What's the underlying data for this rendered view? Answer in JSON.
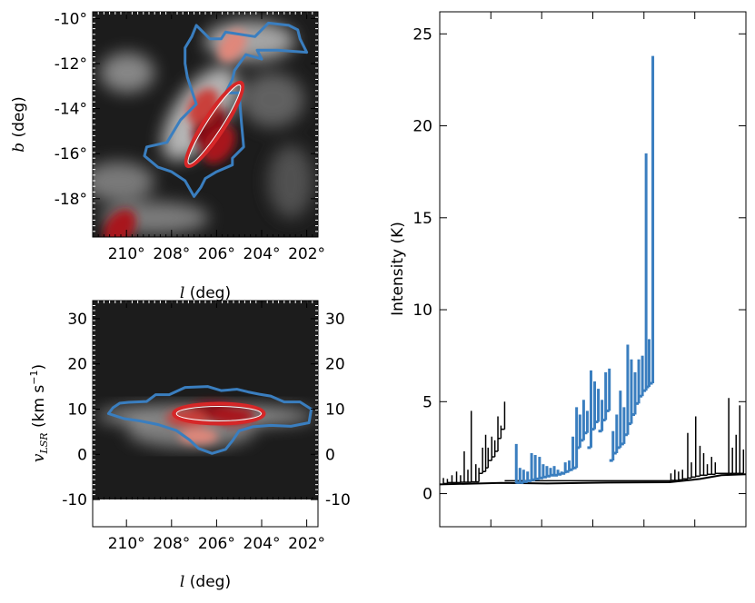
{
  "chart_data": [
    {
      "type": "heatmap",
      "name": "sky-map",
      "xlabel_var": "l",
      "xlabel_unit": "(deg)",
      "ylabel_var": "b",
      "ylabel_unit": "(deg)",
      "xlim": [
        211.5,
        201.5
      ],
      "ylim": [
        -19.7,
        -9.7
      ],
      "x_ticks": [
        210,
        208,
        206,
        204,
        202
      ],
      "x_tick_labels": [
        "210°",
        "208°",
        "206°",
        "204°",
        "202°"
      ],
      "y_ticks": [
        -10,
        -12,
        -14,
        -16,
        -18
      ],
      "y_tick_labels": [
        "-10°",
        "-12°",
        "-14°",
        "-16°",
        "-18°"
      ],
      "contour_color": "#3a7ebf",
      "ellipse_color": "#d62728",
      "ellipse": {
        "center_l": 206.1,
        "center_b": -14.7,
        "semi_major_deg": 2.2,
        "semi_minor_deg": 0.45,
        "angle_deg": 57
      },
      "contour_outline": [
        [
          206.9,
          -10.3
        ],
        [
          206.3,
          -10.9
        ],
        [
          205.8,
          -10.9
        ],
        [
          205.6,
          -10.6
        ],
        [
          204.3,
          -10.8
        ],
        [
          203.7,
          -10.2
        ],
        [
          202.8,
          -10.3
        ],
        [
          202.4,
          -10.5
        ],
        [
          202.3,
          -10.9
        ],
        [
          202.0,
          -11.5
        ],
        [
          203.3,
          -11.4
        ],
        [
          204.2,
          -11.4
        ],
        [
          204.0,
          -11.8
        ],
        [
          204.7,
          -11.6
        ],
        [
          205.2,
          -12.3
        ],
        [
          205.3,
          -12.7
        ],
        [
          205.6,
          -13.3
        ],
        [
          205.0,
          -13.3
        ],
        [
          204.9,
          -14.6
        ],
        [
          204.8,
          -15.7
        ],
        [
          205.3,
          -16.2
        ],
        [
          205.3,
          -16.5
        ],
        [
          206.0,
          -16.8
        ],
        [
          206.5,
          -17.1
        ],
        [
          206.7,
          -17.5
        ],
        [
          207.0,
          -17.9
        ],
        [
          207.4,
          -17.2
        ],
        [
          208.0,
          -16.8
        ],
        [
          208.6,
          -16.6
        ],
        [
          209.2,
          -16.1
        ],
        [
          209.1,
          -15.7
        ],
        [
          208.2,
          -15.5
        ],
        [
          207.6,
          -14.5
        ],
        [
          206.9,
          -13.8
        ],
        [
          207.1,
          -13.2
        ],
        [
          207.3,
          -12.6
        ],
        [
          207.4,
          -12.0
        ],
        [
          207.4,
          -11.3
        ],
        [
          207.1,
          -10.8
        ]
      ],
      "hot_spots": [
        {
          "l": 206.3,
          "b": -14.8,
          "intensity": 1.0
        },
        {
          "l": 205.9,
          "b": -15.6,
          "intensity": 0.9
        },
        {
          "l": 206.6,
          "b": -13.9,
          "intensity": 0.75
        },
        {
          "l": 210.3,
          "b": -19.3,
          "intensity": 0.85
        },
        {
          "l": 205.3,
          "b": -11.2,
          "intensity": 0.5
        }
      ]
    },
    {
      "type": "heatmap",
      "name": "position-velocity-map",
      "xlabel_var": "l",
      "xlabel_unit": "(deg)",
      "ylabel_var": "v",
      "ylabel_subscript": "LSR",
      "ylabel_unit_pre": "(km s",
      "ylabel_unit_exp": "−1",
      "ylabel_unit_post": ")",
      "xlim": [
        211.5,
        201.5
      ],
      "ylim": [
        -16,
        34
      ],
      "data_floor": -10,
      "x_ticks": [
        210,
        208,
        206,
        204,
        202
      ],
      "x_tick_labels": [
        "210°",
        "208°",
        "206°",
        "204°",
        "202°"
      ],
      "y_ticks": [
        30,
        20,
        10,
        0,
        -10
      ],
      "y_tick_labels": [
        "30",
        "20",
        "10",
        "0",
        "-10"
      ],
      "contour_color": "#3a7ebf",
      "ellipse_color": "#d62728",
      "ellipse": {
        "center_l": 205.9,
        "center_v": 9.0,
        "semi_major_deg": 2.0,
        "semi_minor_kms": 2.2
      },
      "contour_outline": [
        [
          209.9,
          11.5
        ],
        [
          209.1,
          11.7
        ],
        [
          208.7,
          13.2
        ],
        [
          208.1,
          13.2
        ],
        [
          207.4,
          14.8
        ],
        [
          206.4,
          15.0
        ],
        [
          205.8,
          14.1
        ],
        [
          205.1,
          14.4
        ],
        [
          204.6,
          13.8
        ],
        [
          204.1,
          13.3
        ],
        [
          203.6,
          12.9
        ],
        [
          203.0,
          11.6
        ],
        [
          202.3,
          11.6
        ],
        [
          201.8,
          10.0
        ],
        [
          201.9,
          7.0
        ],
        [
          202.7,
          6.2
        ],
        [
          203.6,
          6.4
        ],
        [
          204.4,
          6.1
        ],
        [
          205.0,
          5.2
        ],
        [
          205.3,
          3.0
        ],
        [
          205.6,
          1.1
        ],
        [
          206.2,
          0.2
        ],
        [
          206.8,
          1.3
        ],
        [
          207.2,
          3.2
        ],
        [
          207.8,
          5.3
        ],
        [
          208.6,
          6.6
        ],
        [
          209.4,
          7.4
        ],
        [
          210.1,
          7.9
        ],
        [
          210.8,
          9.0
        ],
        [
          210.6,
          10.3
        ],
        [
          210.3,
          11.3
        ]
      ],
      "hot_spots": [
        {
          "l": 206.2,
          "v": 9.5,
          "intensity": 1.0
        },
        {
          "l": 205.3,
          "v": 8.5,
          "intensity": 0.9
        },
        {
          "l": 207.3,
          "v": 8.0,
          "intensity": 0.75
        },
        {
          "l": 206.8,
          "v": 4.0,
          "intensity": 0.55
        }
      ]
    },
    {
      "type": "line",
      "name": "dendrogram",
      "ylabel": "Intensity (K)",
      "xlabel": "",
      "ylim": [
        -1.8,
        26.2
      ],
      "xlim": [
        0,
        1
      ],
      "y_ticks": [
        0,
        5,
        10,
        15,
        20,
        25
      ],
      "y_tick_labels": [
        "0",
        "5",
        "10",
        "15",
        "20",
        "25"
      ],
      "x_tick_positions": [
        0.167,
        0.333,
        0.5,
        0.667,
        0.833
      ],
      "series": [
        {
          "name": "trunk-branches",
          "color": "#000000",
          "leaves": [
            {
              "x": 0.012,
              "base": 0.55,
              "top": 0.85
            },
            {
              "x": 0.025,
              "base": 0.55,
              "top": 0.8
            },
            {
              "x": 0.04,
              "base": 0.6,
              "top": 1.0
            },
            {
              "x": 0.055,
              "base": 0.6,
              "top": 1.2
            },
            {
              "x": 0.068,
              "base": 0.6,
              "top": 1.0
            },
            {
              "x": 0.08,
              "base": 0.62,
              "top": 2.3
            },
            {
              "x": 0.092,
              "base": 0.62,
              "top": 1.3
            },
            {
              "x": 0.103,
              "base": 0.62,
              "top": 4.5
            },
            {
              "x": 0.118,
              "base": 0.64,
              "top": 1.6
            },
            {
              "x": 0.128,
              "base": 0.64,
              "top": 1.4
            },
            {
              "x": 0.14,
              "base": 1.1,
              "top": 2.5
            },
            {
              "x": 0.15,
              "base": 1.2,
              "top": 3.2
            },
            {
              "x": 0.158,
              "base": 1.4,
              "top": 2.5
            },
            {
              "x": 0.17,
              "base": 1.8,
              "top": 3.1
            },
            {
              "x": 0.18,
              "base": 2.0,
              "top": 2.9
            },
            {
              "x": 0.19,
              "base": 2.3,
              "top": 4.2
            },
            {
              "x": 0.2,
              "base": 3.0,
              "top": 3.7
            },
            {
              "x": 0.212,
              "base": 3.5,
              "top": 5.0
            },
            {
              "x": 0.755,
              "base": 0.7,
              "top": 1.1
            },
            {
              "x": 0.768,
              "base": 0.72,
              "top": 1.3
            },
            {
              "x": 0.78,
              "base": 0.72,
              "top": 1.2
            },
            {
              "x": 0.793,
              "base": 0.75,
              "top": 1.3
            },
            {
              "x": 0.81,
              "base": 0.8,
              "top": 3.3
            },
            {
              "x": 0.822,
              "base": 0.85,
              "top": 1.7
            },
            {
              "x": 0.836,
              "base": 0.9,
              "top": 4.2
            },
            {
              "x": 0.85,
              "base": 0.95,
              "top": 2.6
            },
            {
              "x": 0.862,
              "base": 1.0,
              "top": 2.2
            },
            {
              "x": 0.874,
              "base": 1.0,
              "top": 1.6
            },
            {
              "x": 0.888,
              "base": 1.05,
              "top": 2.0
            },
            {
              "x": 0.9,
              "base": 1.05,
              "top": 1.7
            },
            {
              "x": 0.944,
              "base": 1.1,
              "top": 5.2
            },
            {
              "x": 0.956,
              "base": 1.1,
              "top": 2.5
            },
            {
              "x": 0.968,
              "base": 1.1,
              "top": 3.2
            },
            {
              "x": 0.98,
              "base": 1.1,
              "top": 4.8
            },
            {
              "x": 0.992,
              "base": 1.1,
              "top": 2.4
            }
          ]
        },
        {
          "name": "selected-structure",
          "color": "#3a7ebf",
          "leaves": [
            {
              "x": 0.25,
              "base": 0.55,
              "top": 2.7
            },
            {
              "x": 0.262,
              "base": 0.6,
              "top": 1.4
            },
            {
              "x": 0.274,
              "base": 0.6,
              "top": 1.3
            },
            {
              "x": 0.287,
              "base": 0.65,
              "top": 1.2
            },
            {
              "x": 0.3,
              "base": 0.7,
              "top": 2.2
            },
            {
              "x": 0.312,
              "base": 0.75,
              "top": 2.1
            },
            {
              "x": 0.326,
              "base": 0.8,
              "top": 2.0
            },
            {
              "x": 0.338,
              "base": 0.85,
              "top": 1.6
            },
            {
              "x": 0.35,
              "base": 0.9,
              "top": 1.5
            },
            {
              "x": 0.362,
              "base": 0.95,
              "top": 1.4
            },
            {
              "x": 0.374,
              "base": 1.0,
              "top": 1.5
            },
            {
              "x": 0.386,
              "base": 1.0,
              "top": 1.3
            },
            {
              "x": 0.398,
              "base": 1.05,
              "top": 1.2
            },
            {
              "x": 0.41,
              "base": 1.1,
              "top": 1.7
            },
            {
              "x": 0.423,
              "base": 1.2,
              "top": 1.8
            },
            {
              "x": 0.435,
              "base": 1.3,
              "top": 3.1
            },
            {
              "x": 0.447,
              "base": 1.4,
              "top": 4.7
            },
            {
              "x": 0.458,
              "base": 2.5,
              "top": 4.3
            },
            {
              "x": 0.47,
              "base": 2.9,
              "top": 5.1
            },
            {
              "x": 0.482,
              "base": 3.3,
              "top": 4.5
            },
            {
              "x": 0.494,
              "base": 2.5,
              "top": 6.7
            },
            {
              "x": 0.506,
              "base": 3.5,
              "top": 6.1
            },
            {
              "x": 0.518,
              "base": 3.9,
              "top": 5.7
            },
            {
              "x": 0.53,
              "base": 3.4,
              "top": 5.1
            },
            {
              "x": 0.542,
              "base": 4.0,
              "top": 6.6
            },
            {
              "x": 0.554,
              "base": 4.5,
              "top": 6.8
            },
            {
              "x": 0.566,
              "base": 1.8,
              "top": 3.4
            },
            {
              "x": 0.578,
              "base": 2.2,
              "top": 4.3
            },
            {
              "x": 0.59,
              "base": 2.5,
              "top": 5.6
            },
            {
              "x": 0.602,
              "base": 2.7,
              "top": 4.7
            },
            {
              "x": 0.614,
              "base": 3.2,
              "top": 8.1
            },
            {
              "x": 0.626,
              "base": 3.8,
              "top": 7.3
            },
            {
              "x": 0.638,
              "base": 4.3,
              "top": 6.6
            },
            {
              "x": 0.65,
              "base": 4.9,
              "top": 7.3
            },
            {
              "x": 0.662,
              "base": 5.3,
              "top": 7.5
            },
            {
              "x": 0.674,
              "base": 5.6,
              "top": 18.5
            },
            {
              "x": 0.684,
              "base": 5.8,
              "top": 8.4
            },
            {
              "x": 0.696,
              "base": 6.0,
              "top": 23.8
            }
          ]
        }
      ]
    }
  ]
}
